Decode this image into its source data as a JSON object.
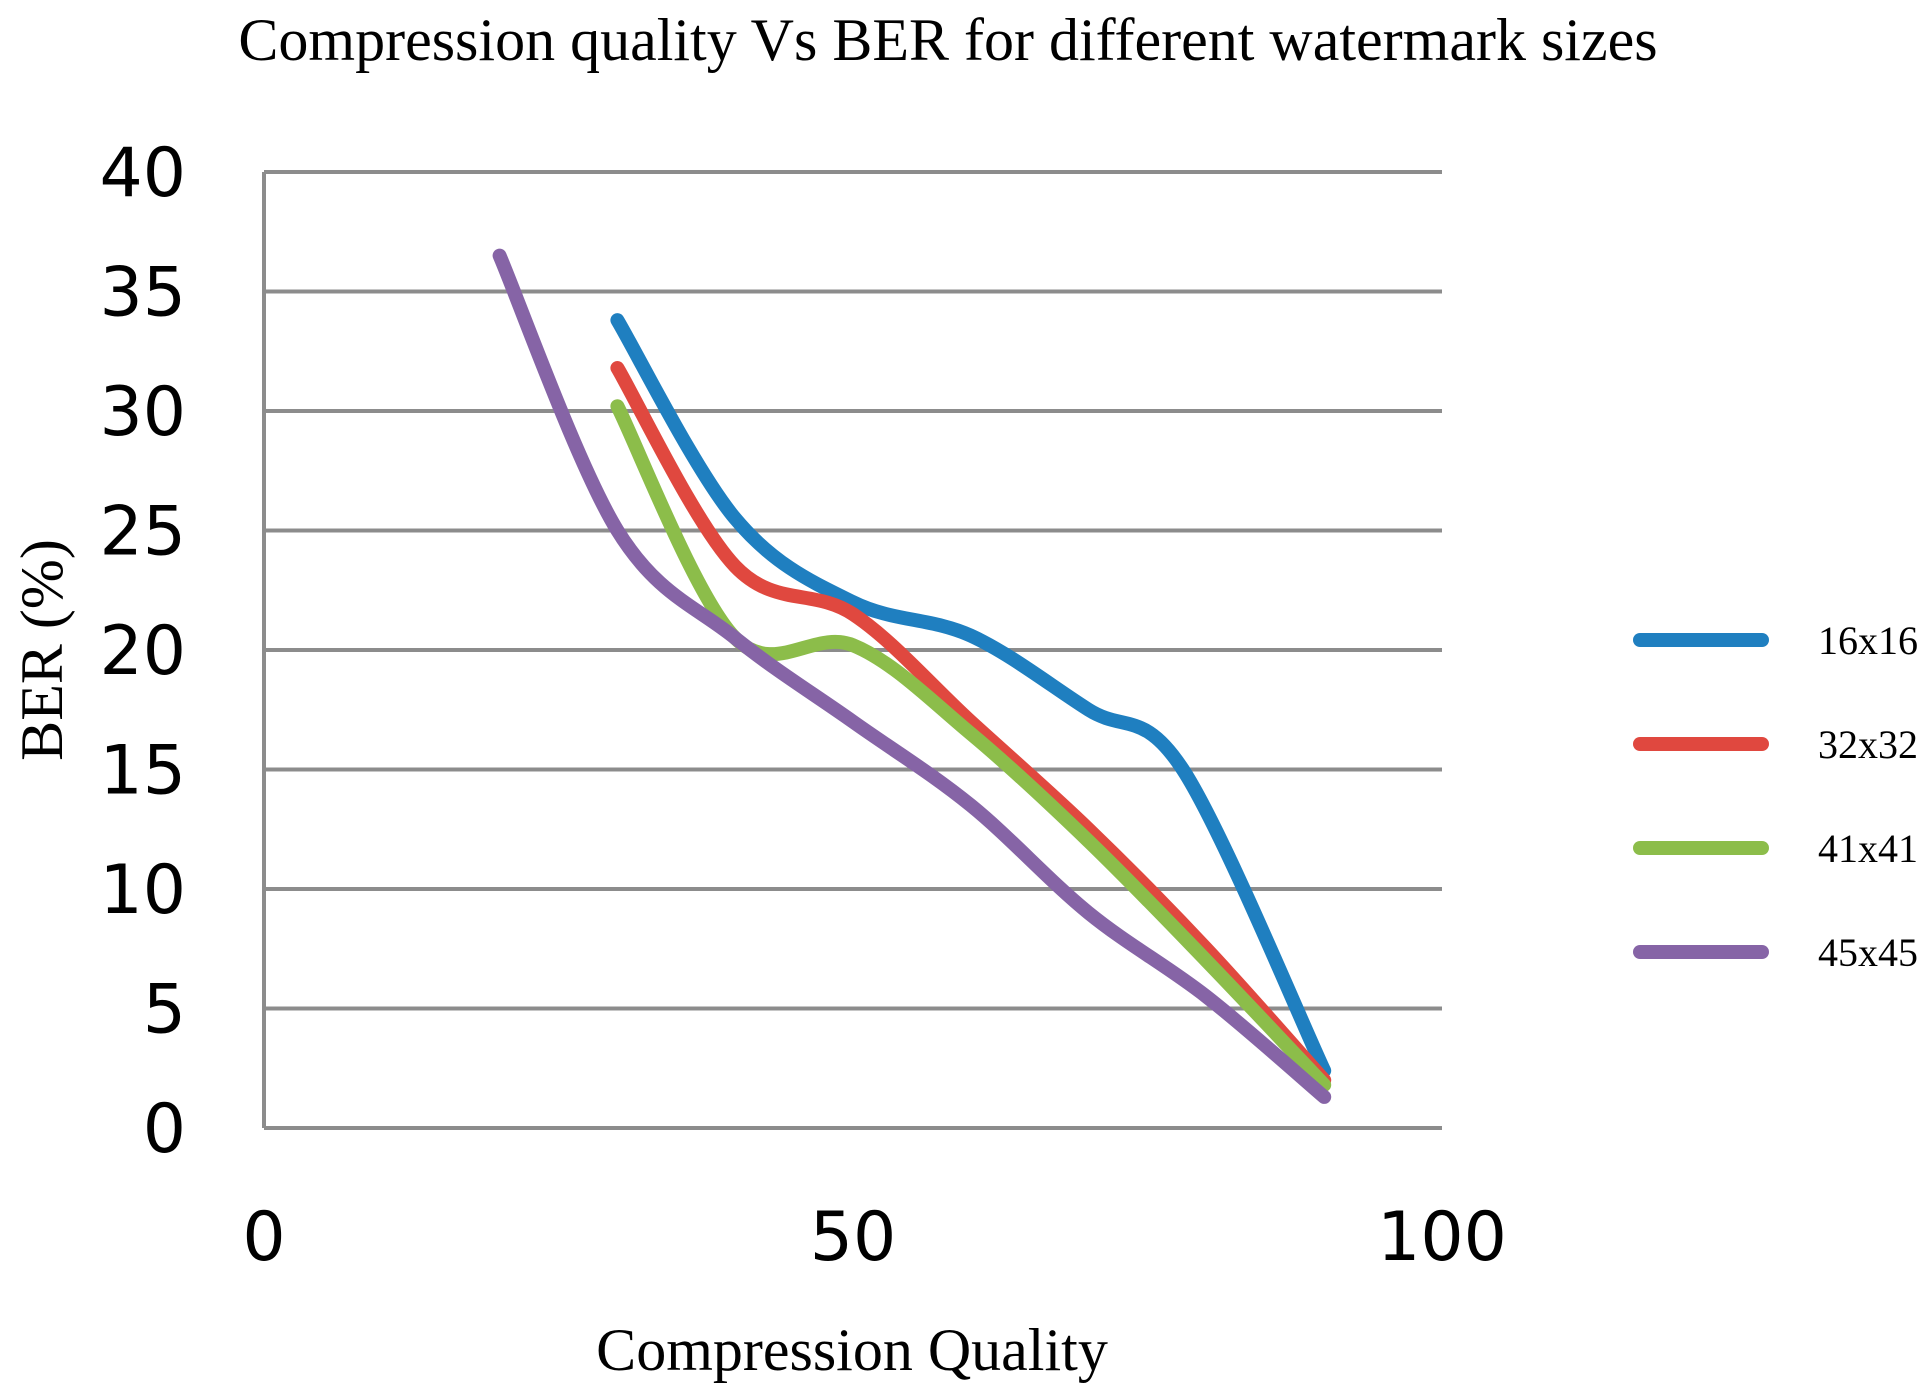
{
  "chart_data": {
    "type": "line",
    "title": "Compression quality Vs BER for different watermark sizes",
    "xlabel": "Compression Quality",
    "ylabel": "BER (%)",
    "xlim": [
      0,
      100
    ],
    "ylim": [
      0,
      40
    ],
    "x_ticks": [
      0,
      50,
      100
    ],
    "y_ticks": [
      0,
      5,
      10,
      15,
      20,
      25,
      30,
      35,
      40
    ],
    "grid": true,
    "legend_position": "right",
    "series": [
      {
        "name": "16x16",
        "color": "#1f7fc0",
        "x": [
          30,
          40,
          50,
          60,
          70,
          78,
          90
        ],
        "y": [
          33.8,
          25.5,
          22,
          20.6,
          17.5,
          15,
          2.4
        ]
      },
      {
        "name": "32x32",
        "color": "#e0483f",
        "x": [
          30,
          40,
          50,
          60,
          70,
          80,
          90
        ],
        "y": [
          31.8,
          23.5,
          21.5,
          17,
          12.5,
          7.5,
          2
        ]
      },
      {
        "name": "41x41",
        "color": "#8cbd4a",
        "x": [
          30,
          40,
          50,
          60,
          70,
          80,
          90
        ],
        "y": [
          30.2,
          20.5,
          20.2,
          16.5,
          12,
          7,
          1.8
        ]
      },
      {
        "name": "45x45",
        "color": "#8664a6",
        "x": [
          20,
          30,
          40,
          50,
          60,
          70,
          80,
          90
        ],
        "y": [
          36.5,
          25,
          20.5,
          17,
          13.5,
          9,
          5.5,
          1.3
        ]
      }
    ]
  }
}
